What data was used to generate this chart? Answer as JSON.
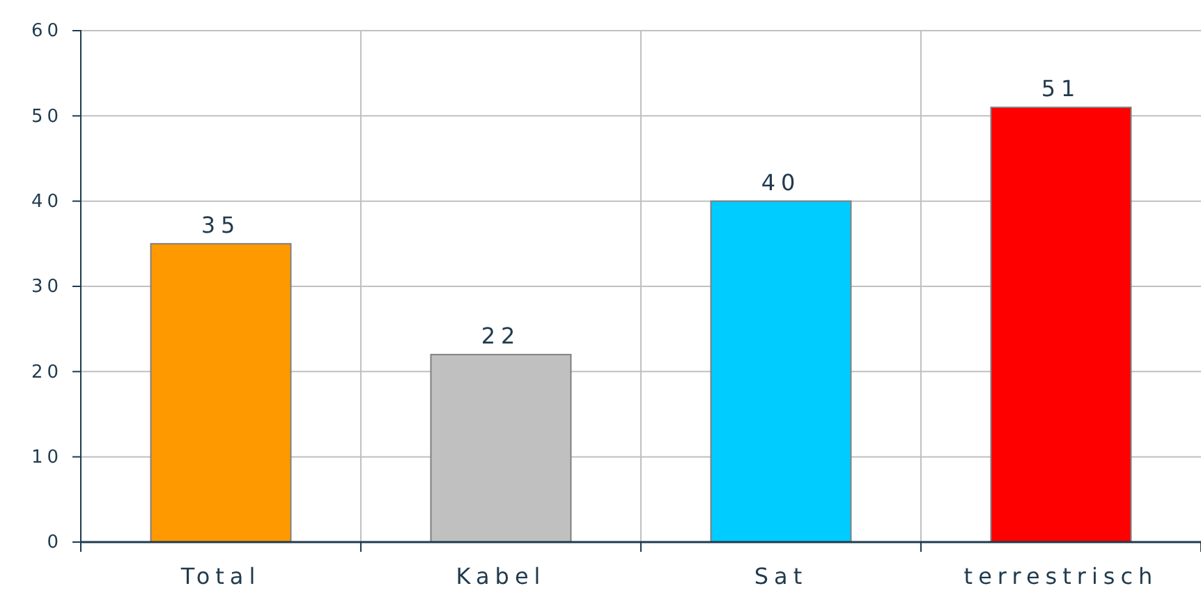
{
  "chart_data": {
    "type": "bar",
    "categories": [
      "Total",
      "Kabel",
      "Sat",
      "terrestrisch"
    ],
    "values": [
      35,
      22,
      40,
      51
    ],
    "colors": [
      "#ff9900",
      "#c0c0c0",
      "#00ccff",
      "#ff0000"
    ],
    "ylim": [
      0,
      60
    ],
    "yticks": [
      0,
      10,
      20,
      30,
      40,
      50,
      60
    ],
    "grid": true,
    "data_labels": true
  }
}
